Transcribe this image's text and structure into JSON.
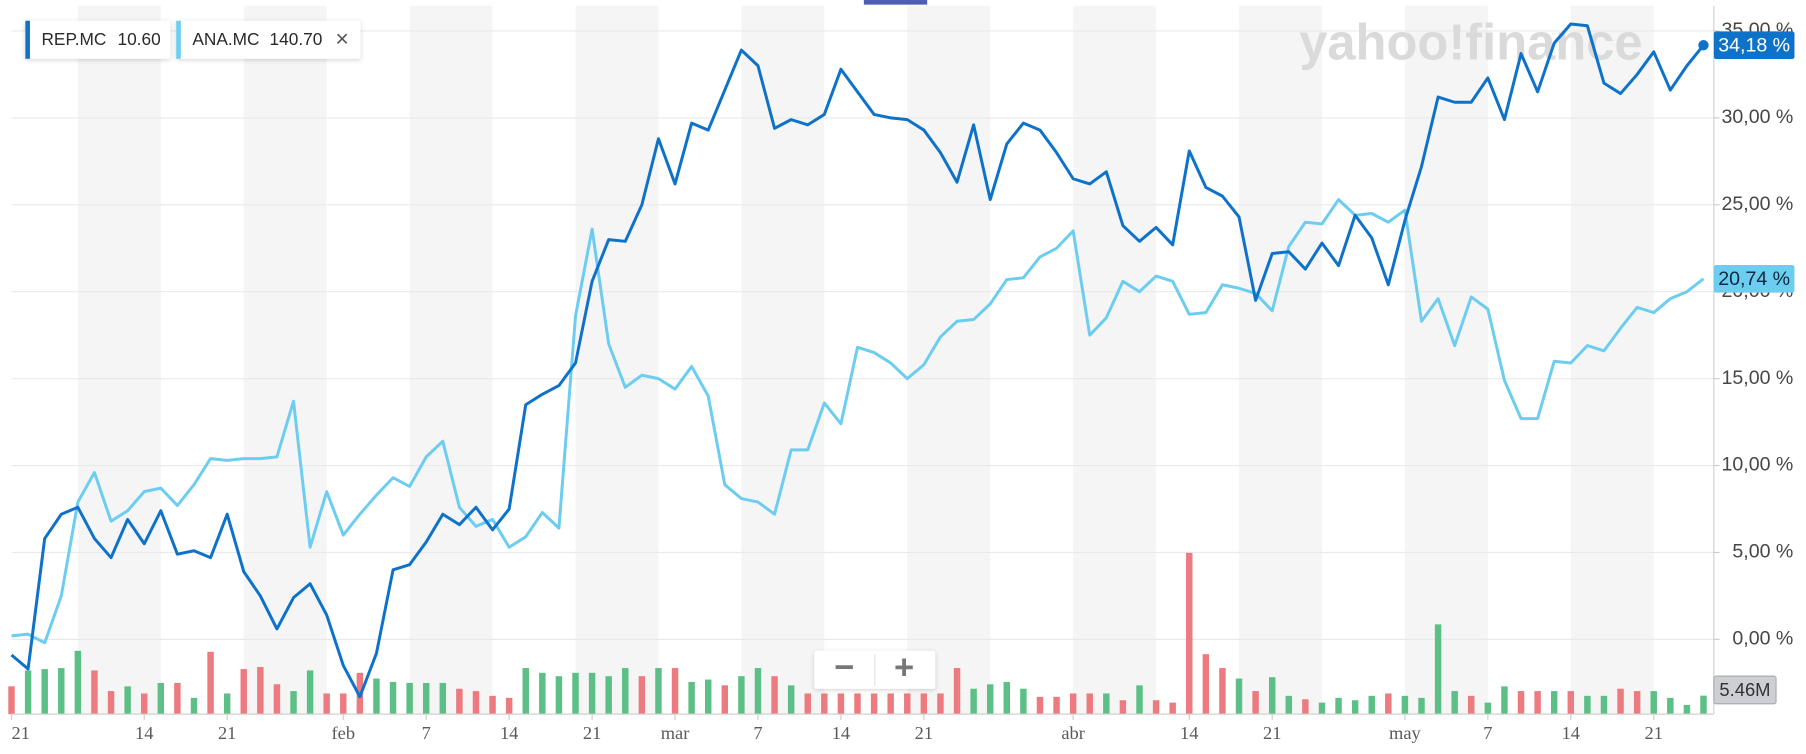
{
  "chart_data": {
    "type": "line",
    "watermark": "yahoo!finance",
    "x": [
      0,
      1,
      2,
      3,
      4,
      5,
      6,
      7,
      8,
      9,
      10,
      11,
      12,
      13,
      14,
      15,
      16,
      17,
      18,
      19,
      20,
      21,
      22,
      23,
      24,
      25,
      26,
      27,
      28,
      29,
      30,
      31,
      32,
      33,
      34,
      35,
      36,
      37,
      38,
      39,
      40,
      41,
      42,
      43,
      44,
      45,
      46,
      47,
      48,
      49,
      50,
      51,
      52,
      53,
      54,
      55,
      56,
      57,
      58,
      59,
      60,
      61,
      62,
      63,
      64,
      65,
      66,
      67,
      68,
      69,
      70,
      71,
      72,
      73,
      74,
      75,
      76,
      77,
      78,
      79,
      80,
      81,
      82,
      83,
      84,
      85,
      86,
      87,
      88,
      89,
      90,
      91,
      92,
      93,
      94,
      95,
      96,
      97,
      98,
      99,
      100,
      101,
      102
    ],
    "xlim": [
      0,
      102
    ],
    "xticks": [
      {
        "value": 0,
        "label": "21"
      },
      {
        "value": 8,
        "label": "14"
      },
      {
        "value": 13,
        "label": "21"
      },
      {
        "value": 20,
        "label": "feb"
      },
      {
        "value": 25,
        "label": "7"
      },
      {
        "value": 30,
        "label": "14"
      },
      {
        "value": 35,
        "label": "21"
      },
      {
        "value": 40,
        "label": "mar"
      },
      {
        "value": 45,
        "label": "7"
      },
      {
        "value": 50,
        "label": "14"
      },
      {
        "value": 55,
        "label": "21"
      },
      {
        "value": 64,
        "label": "abr"
      },
      {
        "value": 71,
        "label": "14"
      },
      {
        "value": 76,
        "label": "21"
      },
      {
        "value": 84,
        "label": "may"
      },
      {
        "value": 89,
        "label": "7"
      },
      {
        "value": 94,
        "label": "14"
      },
      {
        "value": 99,
        "label": "21"
      }
    ],
    "ylim": [
      -4.3,
      36.45
    ],
    "yticks": [
      {
        "value": 0,
        "label": "0,00 %"
      },
      {
        "value": 5,
        "label": "5,00 %"
      },
      {
        "value": 10,
        "label": "10,00 %"
      },
      {
        "value": 15,
        "label": "15,00 %"
      },
      {
        "value": 20,
        "label": "20,00 %"
      },
      {
        "value": 25,
        "label": "25,00 %"
      },
      {
        "value": 30,
        "label": "30,00 %"
      },
      {
        "value": 35,
        "label": "35,00 %"
      }
    ],
    "grid": true,
    "series": [
      {
        "name": "REP.MC",
        "price": "10.60",
        "color": "#0f72c9",
        "last_label": "34,18 %",
        "badge_text_color": "#ffffff",
        "values": [
          -0.9,
          -1.7,
          5.8,
          7.2,
          7.6,
          5.8,
          4.7,
          6.9,
          5.5,
          7.4,
          4.9,
          5.1,
          4.7,
          7.2,
          3.9,
          2.5,
          0.6,
          2.4,
          3.2,
          1.4,
          -1.5,
          -3.3,
          -0.8,
          4.0,
          4.3,
          5.6,
          7.2,
          6.6,
          7.6,
          6.3,
          7.5,
          13.5,
          14.1,
          14.6,
          15.9,
          20.6,
          23.0,
          22.9,
          25.0,
          28.8,
          26.2,
          29.7,
          29.3,
          31.6,
          33.9,
          33.0,
          29.4,
          29.9,
          29.6,
          30.2,
          32.8,
          31.5,
          30.2,
          30.0,
          29.9,
          29.3,
          28.0,
          26.3,
          29.6,
          25.3,
          28.5,
          29.7,
          29.3,
          28.0,
          26.5,
          26.2,
          26.9,
          23.8,
          22.9,
          23.7,
          22.7,
          28.1,
          26.0,
          25.5,
          24.3,
          19.5,
          22.2,
          22.3,
          21.3,
          22.8,
          21.5,
          24.4,
          23.1,
          20.4,
          24.1,
          27.2,
          31.2,
          30.9,
          30.9,
          32.3,
          29.9,
          33.7,
          31.5,
          34.3,
          35.4,
          35.3,
          32.0,
          31.4,
          32.5,
          33.8,
          31.6,
          33.0,
          34.18
        ]
      },
      {
        "name": "ANA.MC",
        "price": "140.70",
        "color": "#6dcdf0",
        "last_label": "20,74 %",
        "badge_text_color": "#0b2a40",
        "values": [
          0.2,
          0.3,
          -0.2,
          2.5,
          7.9,
          9.6,
          6.8,
          7.4,
          8.5,
          8.7,
          7.7,
          8.9,
          10.4,
          10.3,
          10.4,
          10.4,
          10.5,
          13.7,
          5.3,
          8.5,
          6.0,
          7.2,
          8.3,
          9.3,
          8.8,
          10.5,
          11.4,
          7.6,
          6.5,
          6.9,
          5.3,
          5.9,
          7.3,
          6.4,
          18.6,
          23.6,
          17.0,
          14.5,
          15.2,
          15.0,
          14.4,
          15.7,
          14.0,
          8.9,
          8.1,
          7.9,
          7.2,
          10.9,
          10.9,
          13.6,
          12.4,
          16.8,
          16.5,
          15.9,
          15.0,
          15.8,
          17.4,
          18.3,
          18.4,
          19.3,
          20.7,
          20.8,
          22.0,
          22.5,
          23.5,
          17.5,
          18.5,
          20.6,
          20.0,
          20.9,
          20.6,
          18.7,
          18.8,
          20.4,
          20.2,
          19.9,
          18.9,
          22.6,
          24.0,
          23.9,
          25.3,
          24.4,
          24.5,
          24.0,
          24.7,
          18.3,
          19.6,
          16.9,
          19.7,
          19.0,
          14.9,
          12.7,
          12.7,
          16.0,
          15.9,
          16.9,
          16.6,
          17.9,
          19.1,
          18.8,
          19.6,
          20.0,
          20.74
        ]
      }
    ],
    "volume": {
      "label": "5.46M",
      "up_color": "#5cbf86",
      "down_color": "#ec7a7f",
      "values": [
        8.2,
        12.9,
        13.3,
        13.6,
        18.7,
        12.9,
        6.8,
        8.2,
        6.1,
        9.2,
        9.2,
        4.8,
        18.4,
        6.1,
        13.3,
        13.9,
        8.8,
        6.8,
        12.9,
        6.1,
        6.1,
        12.2,
        10.5,
        9.5,
        9.2,
        9.2,
        9.2,
        7.5,
        6.8,
        5.4,
        4.8,
        13.6,
        12.2,
        11.2,
        12.2,
        12.2,
        11.2,
        13.6,
        11.2,
        13.6,
        13.6,
        9.5,
        10.2,
        8.5,
        11.2,
        13.6,
        11.2,
        8.5,
        6.1,
        6.1,
        6.1,
        6.1,
        6.1,
        6.1,
        6.1,
        6.1,
        6.1,
        13.6,
        7.5,
        8.8,
        9.5,
        7.5,
        5.1,
        5.1,
        6.1,
        6.1,
        6.1,
        4.1,
        8.5,
        4.1,
        3.4,
        47.6,
        17.7,
        13.6,
        10.5,
        6.8,
        10.9,
        5.4,
        4.4,
        3.4,
        4.8,
        4.1,
        5.4,
        6.1,
        5.4,
        4.8,
        26.5,
        6.8,
        5.4,
        3.4,
        8.2,
        6.8,
        6.8,
        6.8,
        6.8,
        5.4,
        5.4,
        7.5,
        6.8,
        6.8,
        4.8,
        2.7,
        5.46
      ],
      "up": [
        false,
        true,
        true,
        true,
        true,
        false,
        false,
        true,
        false,
        true,
        false,
        true,
        false,
        true,
        false,
        false,
        false,
        true,
        true,
        false,
        false,
        false,
        true,
        true,
        true,
        true,
        true,
        false,
        false,
        false,
        false,
        true,
        true,
        true,
        true,
        true,
        true,
        true,
        false,
        true,
        false,
        true,
        true,
        false,
        true,
        true,
        false,
        true,
        false,
        false,
        false,
        false,
        false,
        false,
        false,
        false,
        false,
        false,
        true,
        true,
        true,
        true,
        false,
        false,
        false,
        false,
        true,
        false,
        true,
        false,
        false,
        false,
        false,
        false,
        true,
        false,
        true,
        true,
        false,
        true,
        true,
        true,
        true,
        false,
        true,
        true,
        true,
        true,
        false,
        true,
        true,
        false,
        false,
        true,
        false,
        true,
        true,
        false,
        false,
        true,
        true,
        true,
        true
      ]
    },
    "zoom_out": "−",
    "zoom_in": "+",
    "close": "×"
  }
}
